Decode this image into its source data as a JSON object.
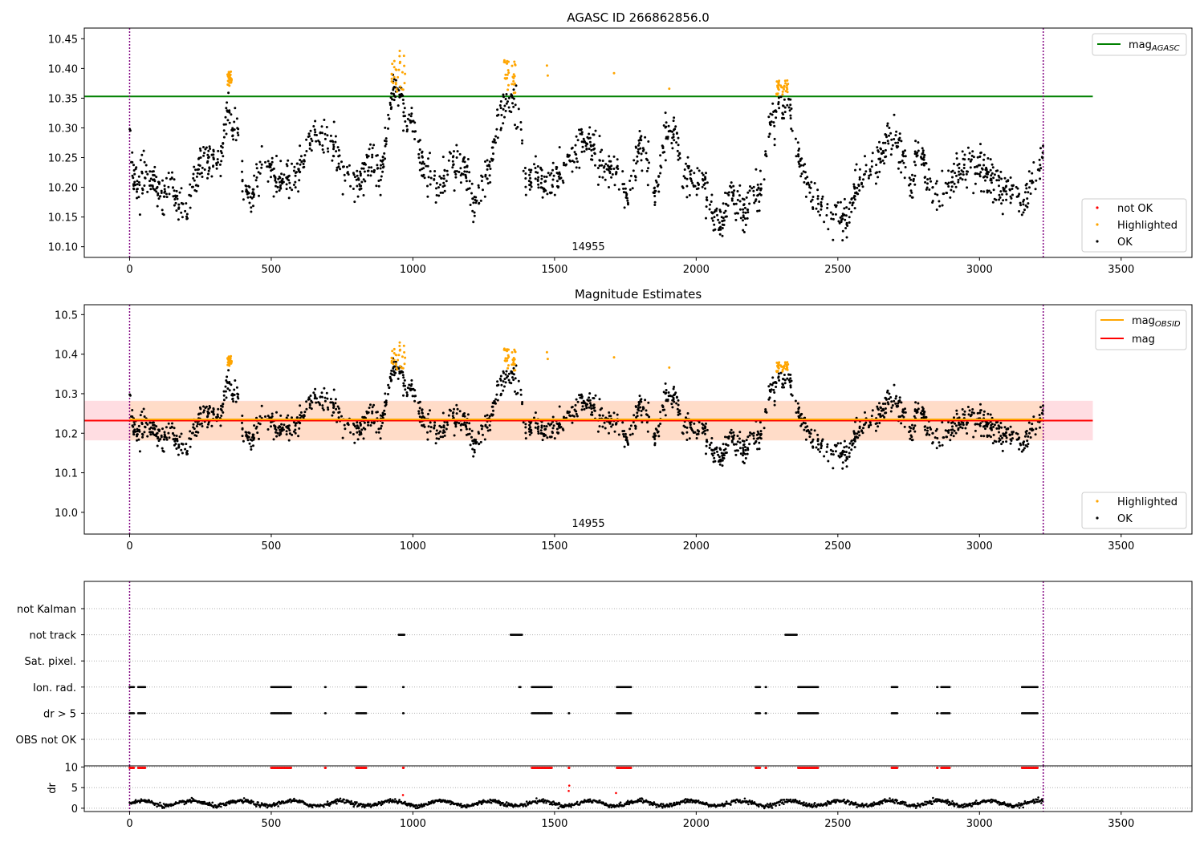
{
  "chart_data": [
    {
      "type": "scatter",
      "title": "AGASC ID 266862856.0",
      "xlim": [
        -160,
        3750
      ],
      "ylim": [
        10.082,
        10.468
      ],
      "x_ticks": [
        0,
        500,
        1000,
        1500,
        2000,
        2500,
        3000,
        3500
      ],
      "y_ticks": [
        10.1,
        10.15,
        10.2,
        10.25,
        10.3,
        10.35,
        10.4,
        10.45
      ],
      "y_tick_labels": [
        "10.10",
        "10.15",
        "10.20",
        "10.25",
        "10.30",
        "10.35",
        "10.40",
        "10.45"
      ],
      "obsid_label": "14955",
      "obsid_boundaries": [
        0,
        3225
      ],
      "reference_lines": [
        {
          "name": "mag_AGASC",
          "legend_main": "mag",
          "legend_sub": "AGASC",
          "y": 10.353,
          "x_range": [
            -160,
            3400
          ],
          "color": "#008000"
        }
      ],
      "legend_lines_position": "upper right",
      "legend_points_position": "lower right",
      "point_series": [
        {
          "name": "not OK",
          "color": "#ff0000"
        },
        {
          "name": "Highlighted",
          "color": "#ffa500"
        },
        {
          "name": "OK",
          "color": "#000000"
        }
      ]
    },
    {
      "type": "scatter",
      "title": "Magnitude Estimates",
      "xlim": [
        -160,
        3750
      ],
      "ylim": [
        9.945,
        10.525
      ],
      "x_ticks": [
        0,
        500,
        1000,
        1500,
        2000,
        2500,
        3000,
        3500
      ],
      "y_ticks": [
        10.0,
        10.1,
        10.2,
        10.3,
        10.4,
        10.5
      ],
      "y_tick_labels": [
        "10.0",
        "10.1",
        "10.2",
        "10.3",
        "10.4",
        "10.5"
      ],
      "obsid_label": "14955",
      "obsid_boundaries": [
        0,
        3225
      ],
      "reference_lines": [
        {
          "name": "mag_OBSID",
          "legend_main": "mag",
          "legend_sub": "OBSID",
          "y": 10.235,
          "band": [
            10.182,
            10.281
          ],
          "x_range": [
            0,
            3225
          ],
          "color": "#ffa500",
          "band_color": "#ffdcc8"
        },
        {
          "name": "mag",
          "legend_main": "mag",
          "legend_sub": "",
          "y": 10.232,
          "band": [
            10.182,
            10.282
          ],
          "x_range": [
            -160,
            3400
          ],
          "color": "#ff0000",
          "band_color": "#ffdde2"
        }
      ],
      "legend_lines_position": "upper right",
      "legend_points_position": "lower right",
      "point_series": [
        {
          "name": "Highlighted",
          "color": "#ffa500"
        },
        {
          "name": "OK",
          "color": "#000000"
        }
      ]
    },
    {
      "type": "scatter",
      "title": "",
      "xlim": [
        -160,
        3750
      ],
      "x_ticks": [
        0,
        500,
        1000,
        1500,
        2000,
        2500,
        3000,
        3500
      ],
      "flag_rows": [
        "not Kalman",
        "not track",
        "Sat. pixel.",
        "Ion. rad.",
        "dr > 5",
        "OBS not OK"
      ],
      "flag_x_ranges": {
        "not track": [
          [
            950,
            970
          ],
          [
            1345,
            1385
          ],
          [
            2315,
            2355
          ]
        ],
        "Ion. rad.": [
          [
            0,
            15
          ],
          [
            30,
            55
          ],
          [
            500,
            570
          ],
          [
            690,
            692
          ],
          [
            800,
            835
          ],
          [
            965,
            967
          ],
          [
            1375,
            1380
          ],
          [
            1420,
            1490
          ],
          [
            1720,
            1770
          ],
          [
            2210,
            2225
          ],
          [
            2245,
            2247
          ],
          [
            2360,
            2430
          ],
          [
            2690,
            2710
          ],
          [
            2850,
            2852
          ],
          [
            2865,
            2895
          ],
          [
            3150,
            3205
          ]
        ],
        "dr > 5": [
          [
            0,
            15
          ],
          [
            30,
            55
          ],
          [
            500,
            570
          ],
          [
            690,
            692
          ],
          [
            800,
            835
          ],
          [
            965,
            967
          ],
          [
            1420,
            1490
          ],
          [
            1550,
            1552
          ],
          [
            1720,
            1770
          ],
          [
            2210,
            2225
          ],
          [
            2245,
            2247
          ],
          [
            2360,
            2430
          ],
          [
            2690,
            2710
          ],
          [
            2850,
            2852
          ],
          [
            2865,
            2895
          ],
          [
            3150,
            3205
          ]
        ]
      },
      "dr_ylabel": "dr",
      "dr_ylim": [
        -0.8,
        10.3
      ],
      "dr_y_ticks": [
        0,
        5,
        10
      ],
      "dr_clipped_value": 10,
      "dr_outliers": [
        {
          "x": 965,
          "y": 3.2
        },
        {
          "x": 1550,
          "y": 4.2
        },
        {
          "x": 1552,
          "y": 5.5
        },
        {
          "x": 1717,
          "y": 3.7
        }
      ],
      "colors": {
        "flag_points": "#000000",
        "clipped_points": "#ff0000",
        "obsid_boundary": "#800080",
        "reference_line": "#000000"
      }
    }
  ]
}
